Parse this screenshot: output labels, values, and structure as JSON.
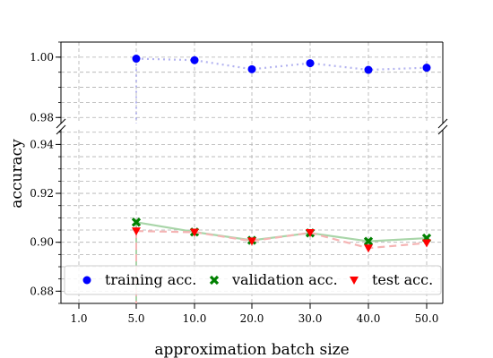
{
  "chart_data": {
    "type": "line",
    "categories": [
      "1.0",
      "5.0",
      "10.0",
      "20.0",
      "30.0",
      "40.0",
      "50.0"
    ],
    "xlabel": "approximation batch size",
    "ylabel": "accuracy",
    "broken_y_axis": true,
    "upper_panel": {
      "ylim": [
        0.978,
        1.005
      ],
      "yticks": [
        "0.98",
        "1.00"
      ]
    },
    "lower_panel": {
      "ylim": [
        0.875,
        0.946
      ],
      "yticks": [
        "0.88",
        "0.90",
        "0.92",
        "0.94"
      ]
    },
    "grid": true,
    "legend_location": "bottom",
    "series": [
      {
        "name": "training acc.",
        "values": [
          null,
          0.9995,
          0.999,
          0.996,
          0.998,
          0.9958,
          0.9965
        ],
        "color": "#0000ff",
        "marker": "circle",
        "line_style": "dotted",
        "line_color": "#b4b4f0"
      },
      {
        "name": "validation acc.",
        "values": [
          null,
          0.9082,
          0.9042,
          0.9008,
          0.9038,
          0.9004,
          0.9017
        ],
        "color": "#008000",
        "marker": "x",
        "line_style": "solid",
        "line_color": "#a8d5a8"
      },
      {
        "name": "test acc.",
        "values": [
          null,
          0.9046,
          0.9041,
          0.9005,
          0.9039,
          0.8976,
          0.8997
        ],
        "color": "#ff0000",
        "marker": "triangle-down",
        "line_style": "dashed",
        "line_color": "#f5b4b4"
      }
    ]
  }
}
